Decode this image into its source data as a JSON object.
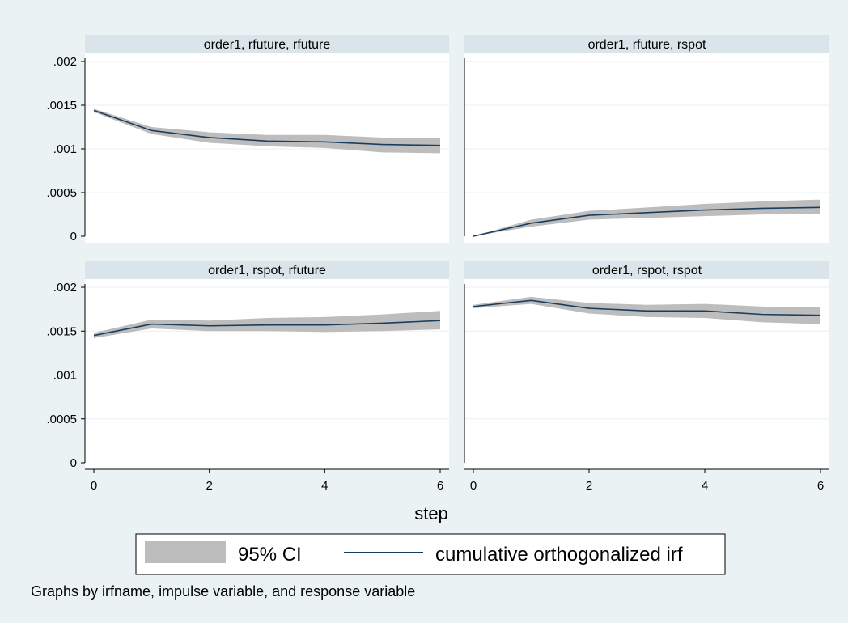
{
  "colors": {
    "outer_background": "#eaf2f3",
    "plot_background": "#ffffff",
    "subtitle_bar": "#d9e5ea",
    "ci_band": "#bdbdbd",
    "irf_line": "#1a3e5f",
    "grid": "#eaf2f3"
  },
  "chart_data": {
    "type": "line",
    "xlabel": "step",
    "note": "Graphs by irfname, impulse variable, and response variable",
    "legend": {
      "position": "bottom",
      "band_label": "95% CI",
      "line_label": "cumulative orthogonalized irf"
    },
    "x_ticks": [
      "0",
      "2",
      "4",
      "6"
    ],
    "y_ticks": [
      {
        "value": 0,
        "label": "0"
      },
      {
        "value": 0.0005,
        "label": ".0005"
      },
      {
        "value": 0.001,
        "label": ".001"
      },
      {
        "value": 0.0015,
        "label": ".0015"
      },
      {
        "value": 0.002,
        "label": ".002"
      }
    ],
    "xlim": [
      0,
      6
    ],
    "ylim": [
      0,
      0.002
    ],
    "panels": [
      {
        "title": "order1, rfuture, rfuture",
        "x": [
          0,
          1,
          2,
          3,
          4,
          5,
          6
        ],
        "irf": [
          0.00144,
          0.00121,
          0.00113,
          0.00109,
          0.00108,
          0.00105,
          0.00104
        ],
        "ci_lower": [
          0.00142,
          0.00117,
          0.00107,
          0.00103,
          0.00101,
          0.00096,
          0.00095
        ],
        "ci_upper": [
          0.00146,
          0.00125,
          0.00119,
          0.00116,
          0.00116,
          0.00113,
          0.00113
        ]
      },
      {
        "title": "order1, rfuture, rspot",
        "x": [
          0,
          1,
          2,
          3,
          4,
          5,
          6
        ],
        "irf": [
          0.0,
          0.00015,
          0.00024,
          0.00027,
          0.0003,
          0.00032,
          0.00033
        ],
        "ci_lower": [
          0.0,
          0.00011,
          0.00019,
          0.00021,
          0.00023,
          0.00025,
          0.00025
        ],
        "ci_upper": [
          0.0,
          0.00019,
          0.00029,
          0.00033,
          0.00037,
          0.0004,
          0.00042
        ]
      },
      {
        "title": "order1, rspot, rfuture",
        "x": [
          0,
          1,
          2,
          3,
          4,
          5,
          6
        ],
        "irf": [
          0.00145,
          0.00158,
          0.00156,
          0.00157,
          0.00157,
          0.00159,
          0.00162
        ],
        "ci_lower": [
          0.00142,
          0.00153,
          0.0015,
          0.0015,
          0.00149,
          0.0015,
          0.00152
        ],
        "ci_upper": [
          0.00148,
          0.00163,
          0.00162,
          0.00165,
          0.00166,
          0.00169,
          0.00173
        ]
      },
      {
        "title": "order1, rspot, rspot",
        "x": [
          0,
          1,
          2,
          3,
          4,
          5,
          6
        ],
        "irf": [
          0.00178,
          0.00185,
          0.00176,
          0.00173,
          0.00173,
          0.00169,
          0.00168
        ],
        "ci_lower": [
          0.00176,
          0.00181,
          0.0017,
          0.00166,
          0.00165,
          0.0016,
          0.00158
        ],
        "ci_upper": [
          0.0018,
          0.00189,
          0.00182,
          0.0018,
          0.00181,
          0.00178,
          0.00177
        ]
      }
    ]
  }
}
